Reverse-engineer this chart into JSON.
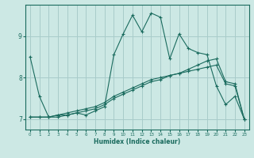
{
  "xlabel": "Humidex (Indice chaleur)",
  "bg_color": "#cce8e4",
  "grid_color": "#a8ccca",
  "line_color": "#1a6b5e",
  "xlim": [
    -0.5,
    23.5
  ],
  "ylim": [
    6.75,
    9.75
  ],
  "xticks": [
    0,
    1,
    2,
    3,
    4,
    5,
    6,
    7,
    8,
    9,
    10,
    11,
    12,
    13,
    14,
    15,
    16,
    17,
    18,
    19,
    20,
    21,
    22,
    23
  ],
  "yticks": [
    7,
    8,
    9
  ],
  "series1": [
    8.5,
    7.55,
    7.05,
    7.05,
    7.1,
    7.15,
    7.1,
    7.2,
    7.3,
    8.55,
    9.05,
    9.5,
    9.1,
    9.55,
    9.45,
    8.45,
    9.05,
    8.7,
    8.6,
    8.55,
    7.8,
    7.35,
    7.55,
    7.0
  ],
  "series2": [
    7.05,
    7.05,
    7.05,
    7.1,
    7.1,
    7.15,
    7.2,
    7.25,
    7.35,
    7.5,
    7.6,
    7.7,
    7.8,
    7.9,
    7.95,
    8.05,
    8.1,
    8.2,
    8.3,
    8.4,
    8.45,
    7.9,
    7.85,
    7.0
  ],
  "series3": [
    7.05,
    7.05,
    7.05,
    7.1,
    7.15,
    7.2,
    7.25,
    7.3,
    7.4,
    7.55,
    7.65,
    7.75,
    7.85,
    7.95,
    8.0,
    8.05,
    8.1,
    8.15,
    8.2,
    8.25,
    8.3,
    7.85,
    7.8,
    7.0
  ]
}
